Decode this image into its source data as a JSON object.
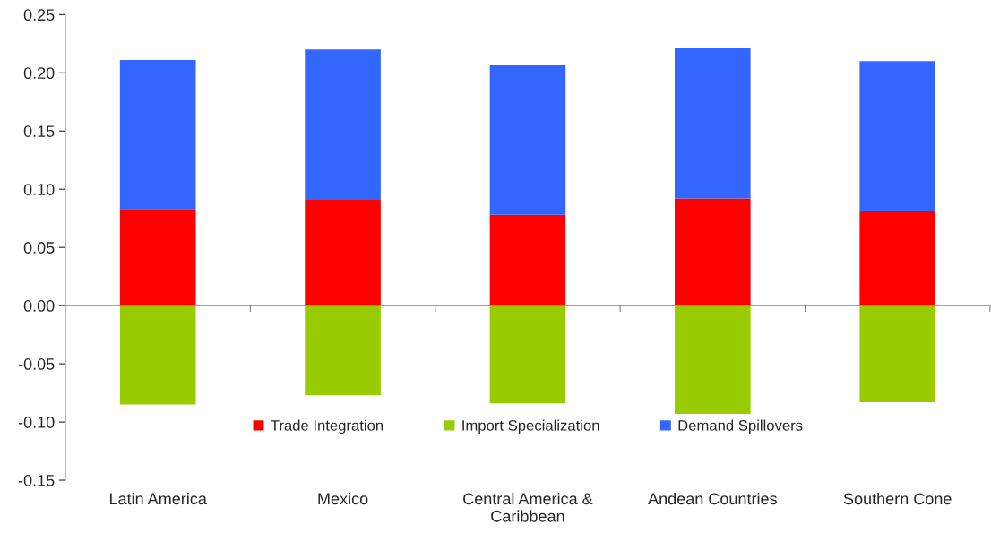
{
  "chart_data": {
    "type": "bar",
    "stacked": true,
    "categories": [
      "Latin America",
      "Mexico",
      "Central America & Caribbean",
      "Andean Countries",
      "Southern Cone"
    ],
    "series": [
      {
        "name": "Trade Integration",
        "color": "#ff0000",
        "values": [
          0.083,
          0.091,
          0.078,
          0.092,
          0.081
        ]
      },
      {
        "name": "Import Specialization",
        "color": "#99cc00",
        "values": [
          -0.085,
          -0.077,
          -0.084,
          -0.093,
          -0.083
        ]
      },
      {
        "name": "Demand Spillovers",
        "color": "#3366ff",
        "values": [
          0.128,
          0.129,
          0.129,
          0.129,
          0.129
        ]
      }
    ],
    "ylim": [
      -0.15,
      0.25
    ],
    "yticks": [
      {
        "value": -0.15,
        "label": "-0.15"
      },
      {
        "value": -0.1,
        "label": "-0.10"
      },
      {
        "value": -0.05,
        "label": "-0.05"
      },
      {
        "value": 0,
        "label": "0.00"
      },
      {
        "value": 0.05,
        "label": "0.05"
      },
      {
        "value": 0.1,
        "label": "0.10"
      },
      {
        "value": 0.15,
        "label": "0.15"
      },
      {
        "value": 0.2,
        "label": "0.20"
      },
      {
        "value": 0.25,
        "label": "0.25"
      }
    ],
    "legend": "bottom"
  }
}
